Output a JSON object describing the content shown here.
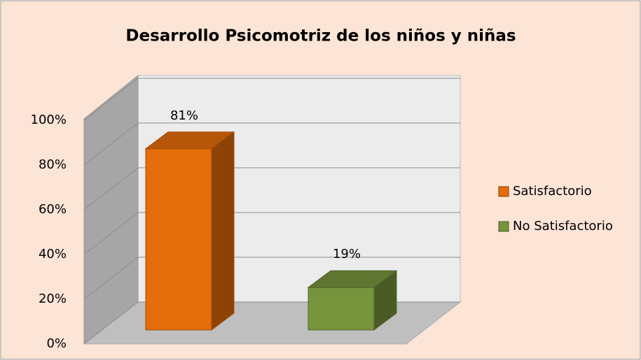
{
  "chart_data": {
    "type": "bar",
    "title": "Desarrollo Psicomotriz de los niños y niñas",
    "categories": [
      null
    ],
    "series": [
      {
        "name": "Satisfactorio",
        "color": "#e46c0a",
        "values": [
          81
        ],
        "value_labels": [
          "81%"
        ]
      },
      {
        "name": "No Satisfactorio",
        "color": "#77933c",
        "values": [
          19
        ],
        "value_labels": [
          "19%"
        ]
      }
    ],
    "ylim": [
      0,
      100
    ],
    "yticks": [
      {
        "value": 0,
        "label": "0%"
      },
      {
        "value": 20,
        "label": "20%"
      },
      {
        "value": 40,
        "label": "40%"
      },
      {
        "value": 60,
        "label": "60%"
      },
      {
        "value": 80,
        "label": "80%"
      },
      {
        "value": 100,
        "label": "100%"
      }
    ],
    "grid": true,
    "legend": "right"
  }
}
